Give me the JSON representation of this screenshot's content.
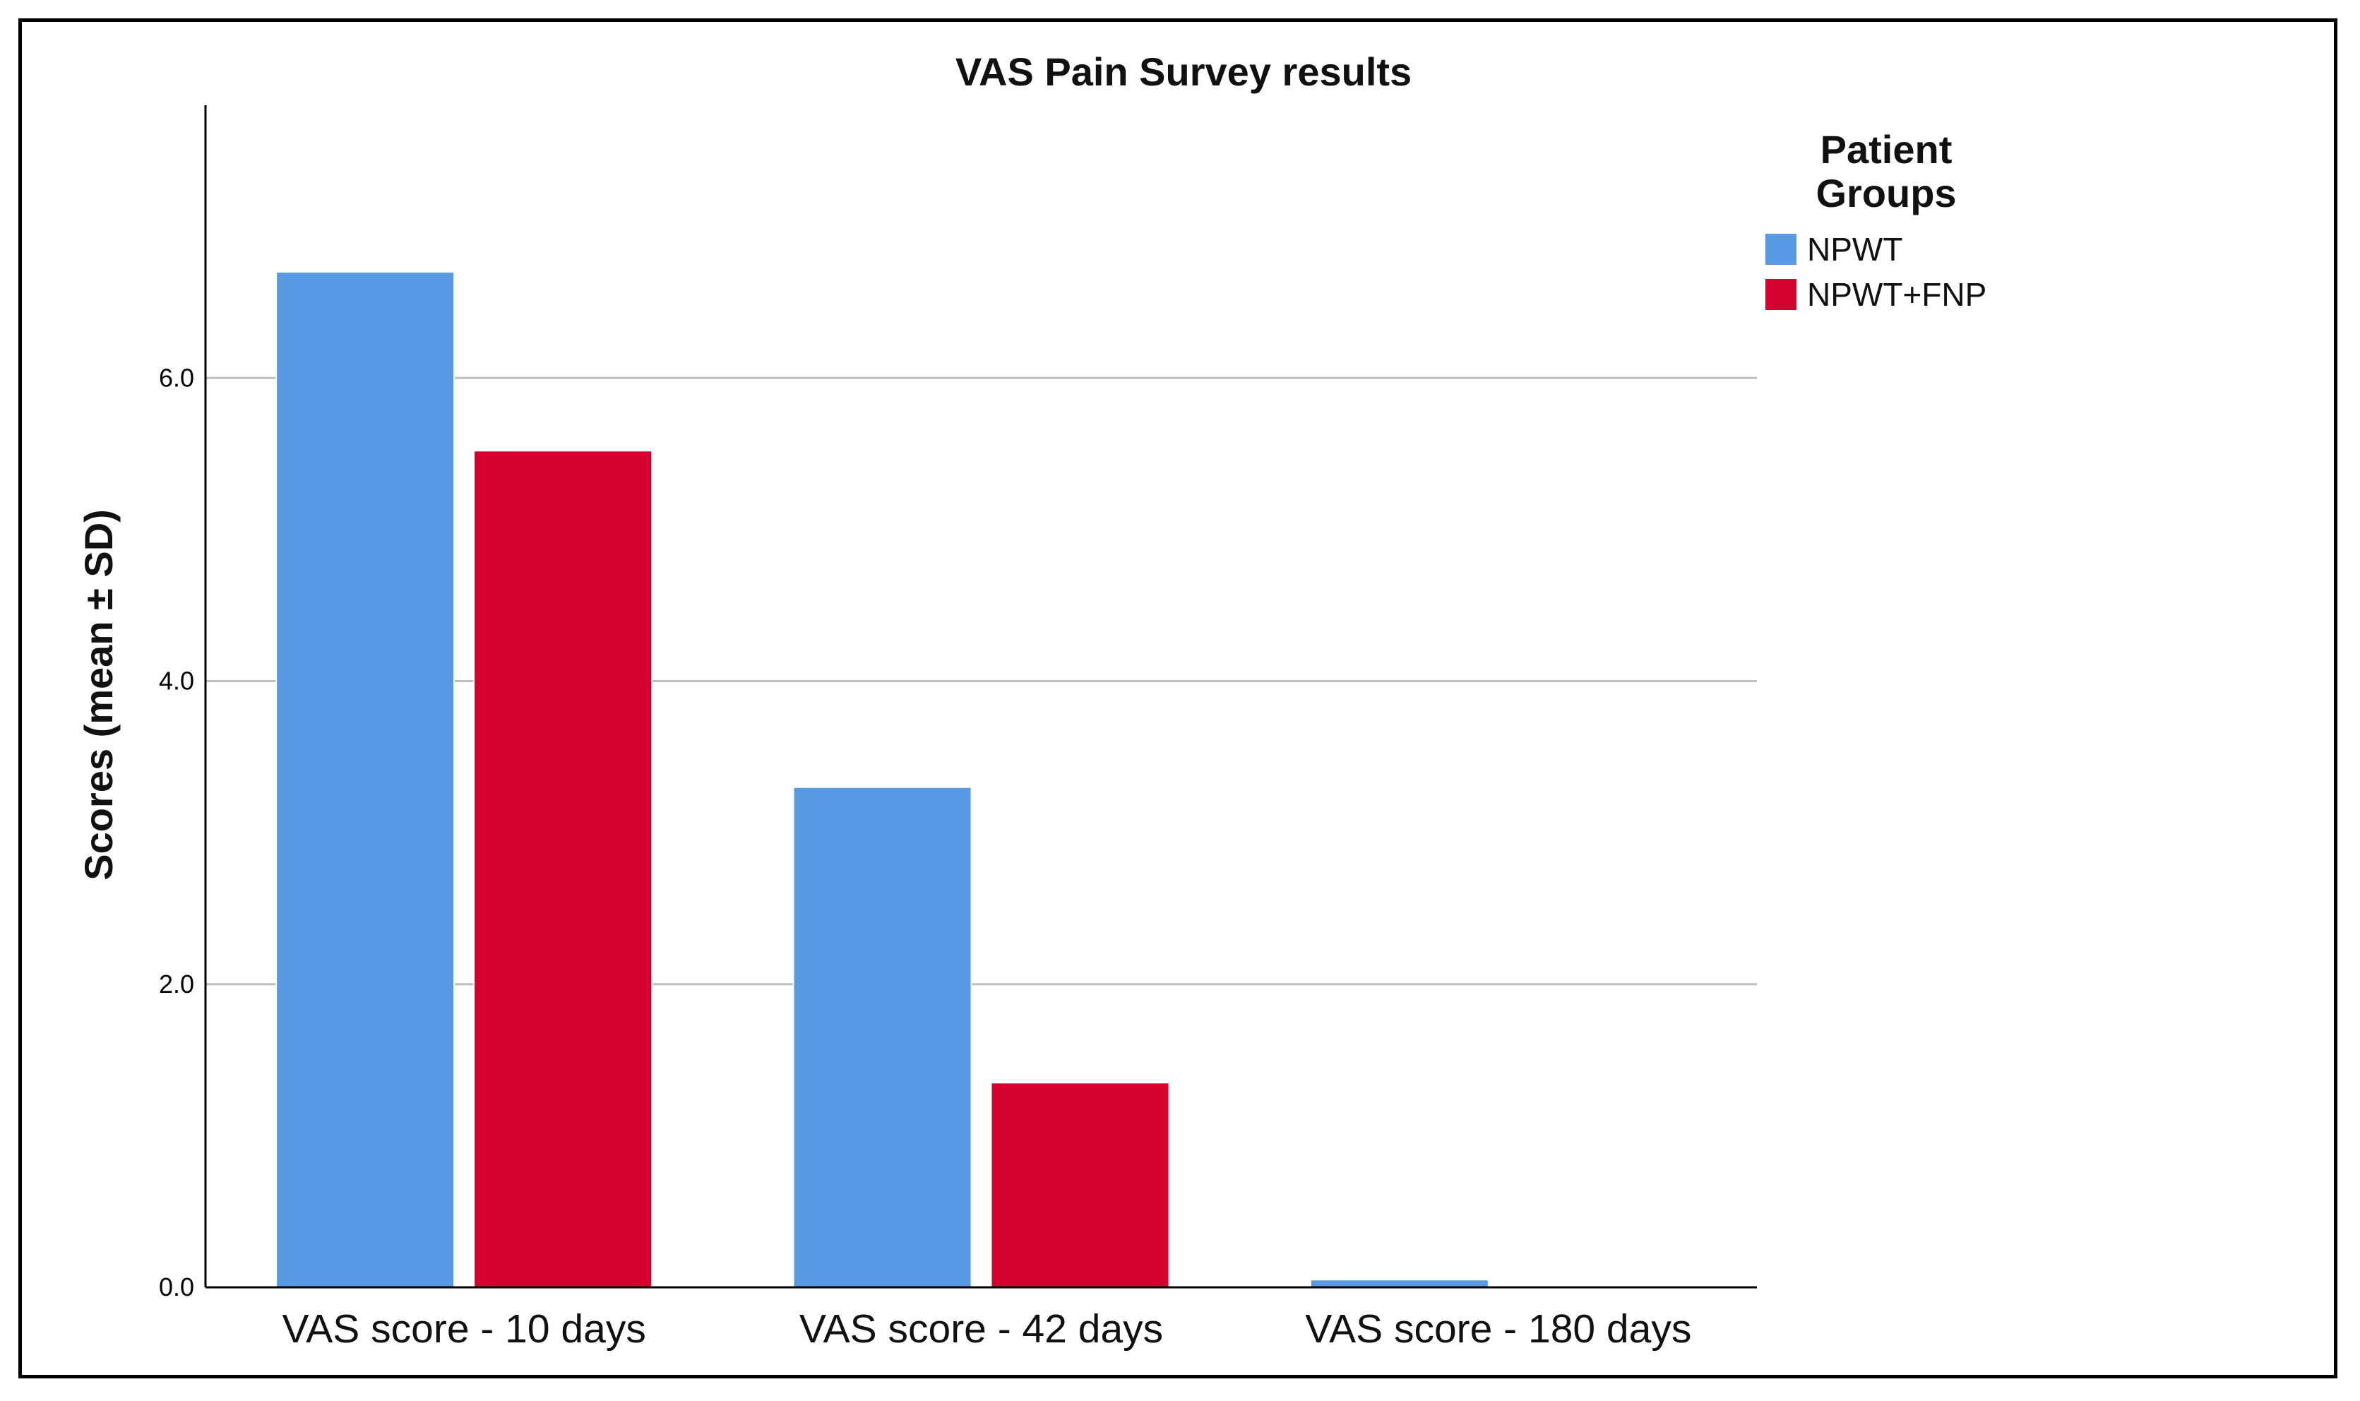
{
  "chart_data": {
    "type": "bar",
    "title": "VAS Pain Survey results",
    "xlabel": "",
    "ylabel": "Scores (mean ± SD)",
    "categories": [
      "VAS score - 10 days",
      "VAS score - 42 days",
      "VAS score - 180 days"
    ],
    "series": [
      {
        "name": "NPWT",
        "color": "#5799E3",
        "values": [
          6.7,
          3.3,
          0.05
        ]
      },
      {
        "name": "NPWT+FNP",
        "color": "#D6002E",
        "values": [
          5.52,
          1.35,
          0.0
        ]
      }
    ],
    "ylim": [
      0,
      7.8
    ],
    "yticks": [
      0.0,
      2.0,
      4.0,
      6.0
    ],
    "ytick_labels": [
      "0.0",
      "2.0",
      "4.0",
      "6.0"
    ],
    "grid": true,
    "legend": {
      "title": "Patient Groups",
      "title_lines": [
        "Patient",
        "Groups"
      ],
      "placement": "right"
    }
  }
}
